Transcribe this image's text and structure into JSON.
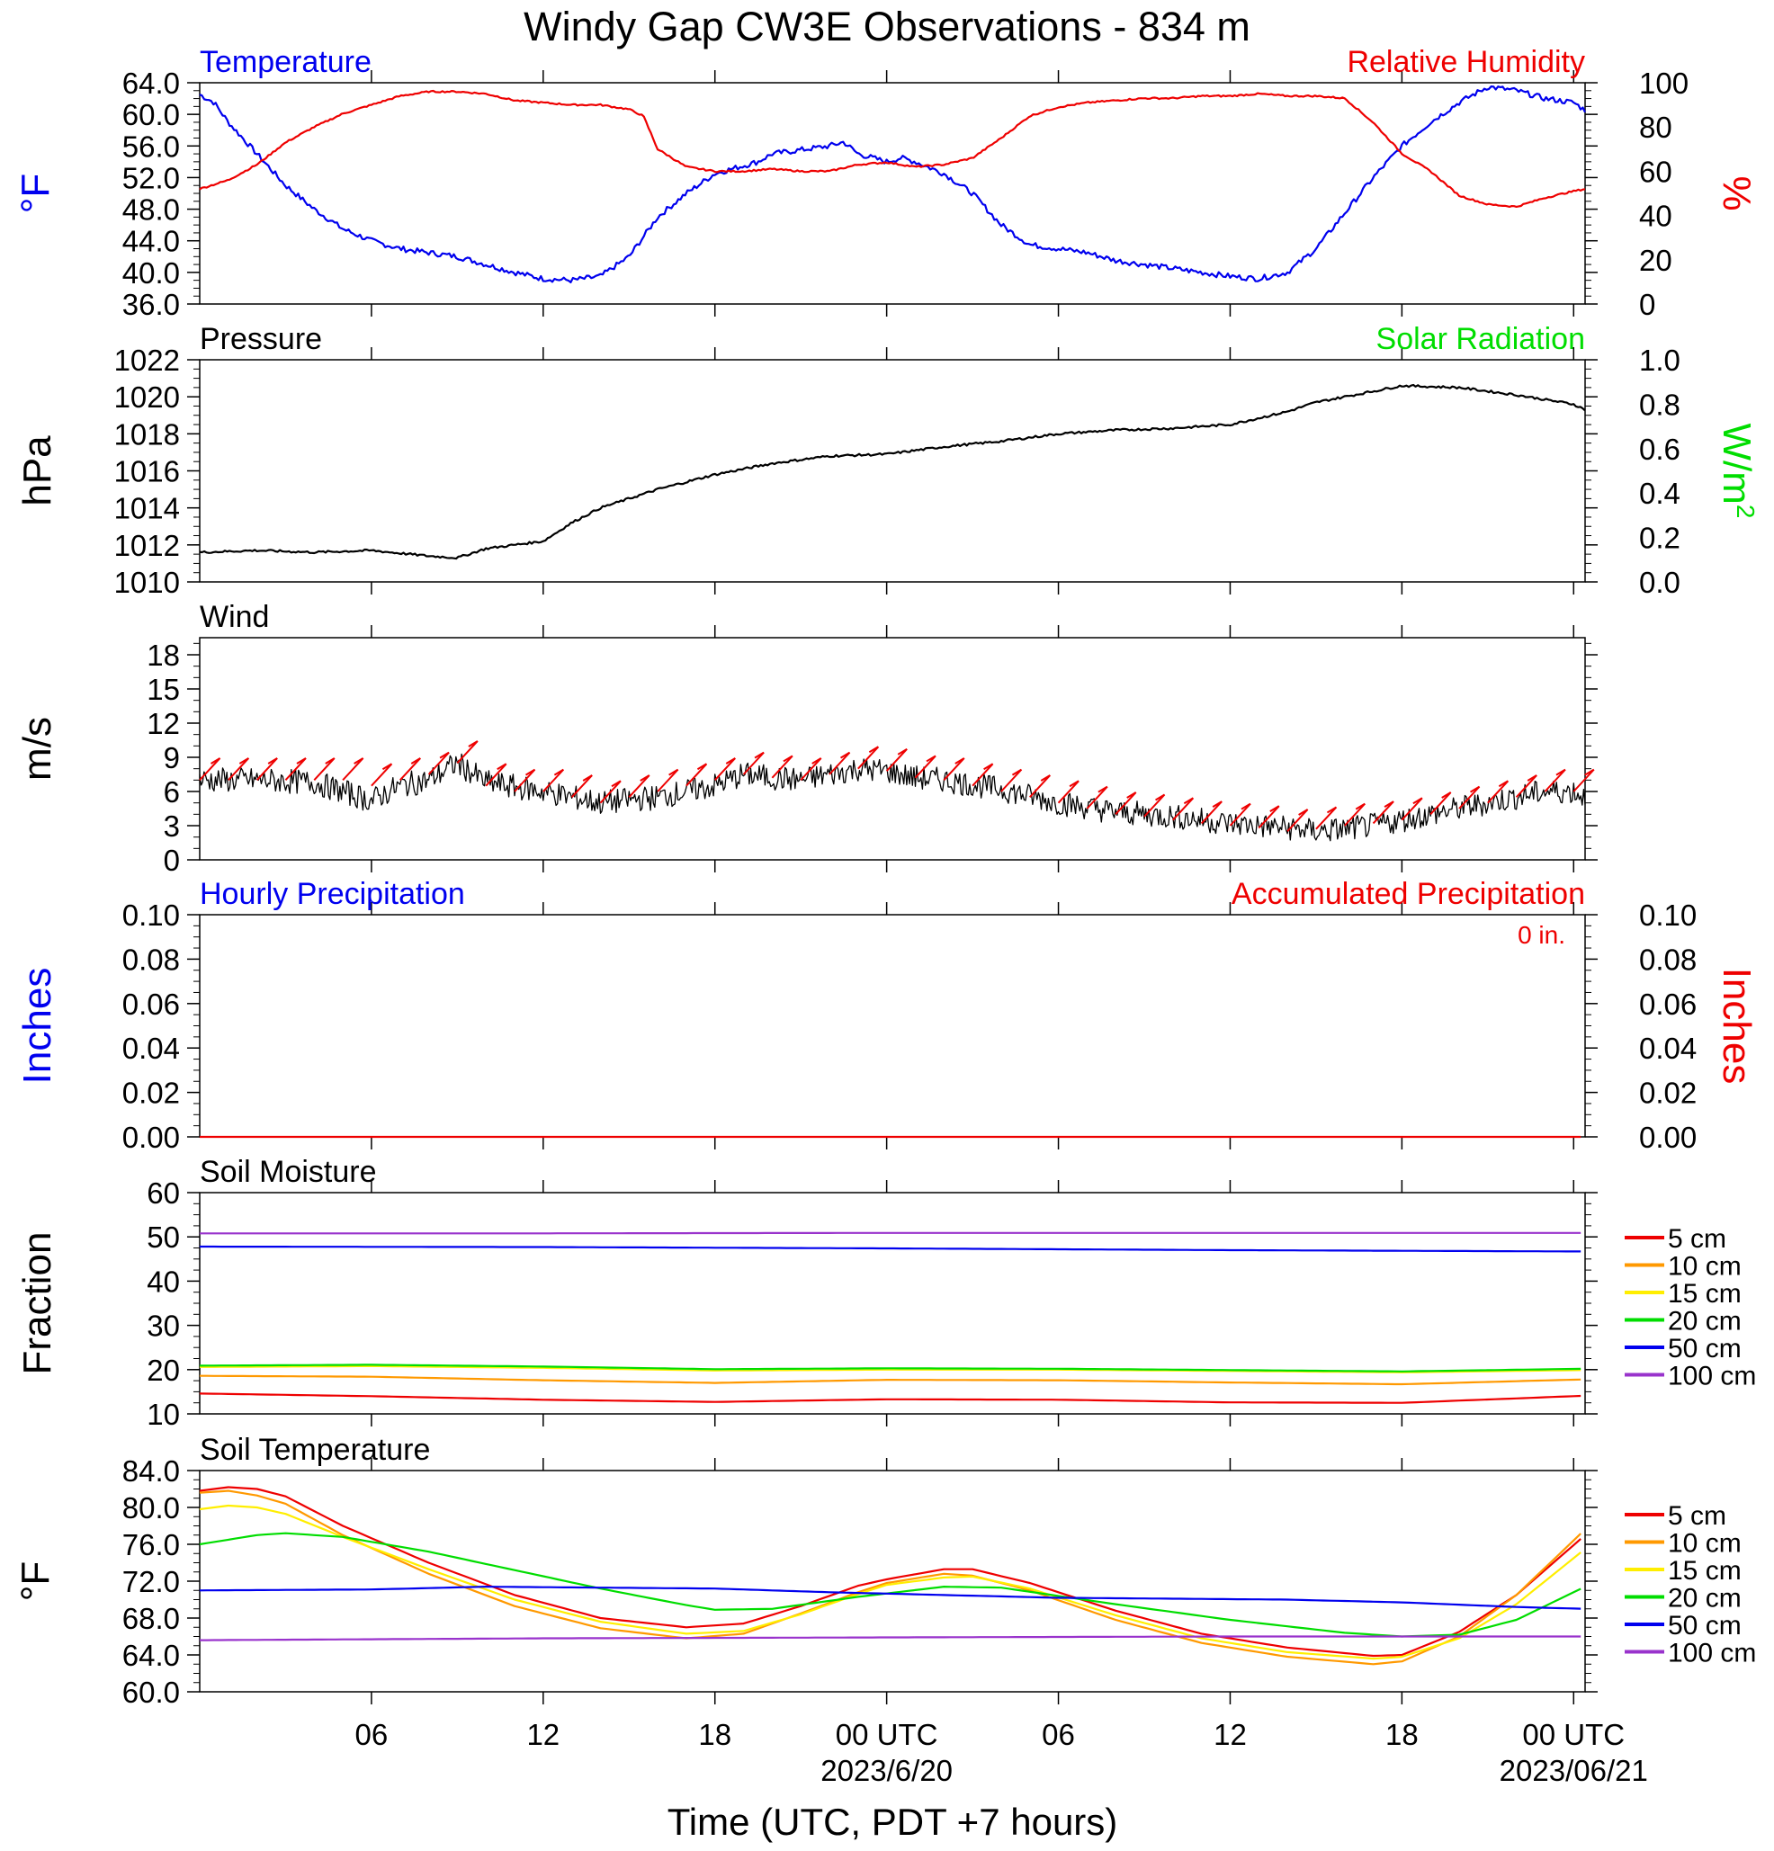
{
  "title": "Windy Gap CW3E Observations - 834 m",
  "x_axis": {
    "label": "Time (UTC, PDT +7 hours)",
    "ticks": [
      {
        "hour": 6,
        "label": "06"
      },
      {
        "hour": 12,
        "label": "12"
      },
      {
        "hour": 18,
        "label": "18"
      },
      {
        "hour": 24,
        "label": "00 UTC"
      },
      {
        "hour": 30,
        "label": "06"
      },
      {
        "hour": 36,
        "label": "12"
      },
      {
        "hour": 42,
        "label": "18"
      },
      {
        "hour": 48,
        "label": "00 UTC"
      }
    ],
    "dates": [
      {
        "hour": 24,
        "label": "2023/6/20"
      },
      {
        "hour": 48,
        "label": "2023/06/21"
      }
    ],
    "range_hours": [
      0,
      48.4
    ]
  },
  "legend": {
    "depths": [
      "5 cm",
      "10 cm",
      "15 cm",
      "20 cm",
      "50 cm",
      "100 cm"
    ],
    "colors": [
      "#ee0000",
      "#ff9900",
      "#ffee00",
      "#00dd00",
      "#0000ee",
      "#9933cc"
    ]
  },
  "chart_data": [
    {
      "id": "temperature-rh",
      "type": "line",
      "left_title": "Temperature",
      "right_title": "Relative Humidity",
      "ylabel_left": "°F",
      "ylabel_right": "%",
      "ylim_left": [
        36,
        64
      ],
      "ylim_right": [
        0,
        100
      ],
      "yticks_left": [
        "64.0",
        "60.0",
        "56.0",
        "52.0",
        "48.0",
        "44.0",
        "40.0",
        "36.0"
      ],
      "yticks_right": [
        "100",
        "80",
        "60",
        "40",
        "20",
        "0"
      ],
      "series": [
        {
          "name": "Temperature",
          "axis": "left",
          "color": "#0000ee",
          "x": [
            0,
            0.5,
            1,
            2,
            3,
            4,
            5,
            6,
            7,
            8,
            9,
            10,
            11,
            12,
            13,
            14,
            15,
            15.5,
            16,
            17,
            18,
            19,
            19.5,
            20,
            21,
            22,
            22.5,
            23,
            24,
            24.5,
            25,
            26,
            27,
            28,
            29,
            30,
            31,
            32,
            33,
            34,
            35,
            36,
            37,
            38,
            39,
            40,
            41,
            42,
            43,
            44,
            45,
            46,
            47,
            48,
            48.4
          ],
          "y": [
            62.5,
            61.5,
            59,
            55,
            51,
            48,
            45.5,
            44,
            43,
            42.5,
            42,
            41,
            40,
            39.2,
            39,
            39.5,
            42,
            44.5,
            47,
            50,
            52.5,
            53.5,
            54,
            55,
            55.5,
            56,
            56.5,
            55,
            54,
            54.5,
            54,
            52.5,
            50,
            46,
            43.5,
            43,
            42.5,
            41.5,
            41,
            40.5,
            40,
            39.5,
            39.2,
            40,
            43,
            47.5,
            52,
            56,
            59,
            61.5,
            63.5,
            63,
            62,
            61.5,
            60.5
          ]
        },
        {
          "name": "Relative Humidity",
          "axis": "right",
          "color": "#ee0000",
          "x": [
            0,
            1,
            2,
            3,
            4,
            5,
            6,
            7,
            8,
            9,
            10,
            11,
            12,
            13,
            14,
            15,
            15.5,
            16,
            17,
            18,
            19,
            20,
            21,
            22,
            23,
            24,
            25,
            26,
            27,
            28,
            29,
            30,
            31,
            32,
            33,
            34,
            35,
            36,
            37,
            38,
            39,
            40,
            41,
            42,
            43,
            44,
            45,
            46,
            47,
            48,
            48.4
          ],
          "y": [
            52,
            56,
            63,
            73,
            80,
            86,
            90,
            94,
            96,
            96,
            95,
            92,
            91,
            90,
            90,
            88,
            85,
            70,
            62,
            60,
            60,
            61,
            60,
            60,
            63,
            64,
            62,
            63,
            66,
            75,
            85,
            89,
            91,
            92,
            93,
            93,
            94,
            94,
            95,
            94,
            94,
            93,
            82,
            68,
            60,
            49,
            45,
            44,
            48,
            51,
            52
          ]
        }
      ]
    },
    {
      "id": "pressure-solar",
      "type": "line",
      "left_title": "Pressure",
      "right_title": "Solar Radiation",
      "ylabel_left": "hPa",
      "ylabel_right": "W/m",
      "ylabel_right_sup": "2",
      "ylim_left": [
        1010,
        1022
      ],
      "ylim_right": [
        0,
        1
      ],
      "yticks_left": [
        "1022",
        "1020",
        "1018",
        "1016",
        "1014",
        "1012",
        "1010"
      ],
      "yticks_right": [
        "1.0",
        "0.8",
        "0.6",
        "0.4",
        "0.2",
        "0.0"
      ],
      "series": [
        {
          "name": "Pressure",
          "axis": "left",
          "color": "#000000",
          "x": [
            0,
            2,
            4,
            6,
            8,
            9,
            10,
            12,
            13,
            14,
            16,
            18,
            20,
            22,
            24,
            26,
            28,
            30,
            32,
            34,
            36,
            38,
            39,
            40,
            42,
            44,
            46,
            48,
            48.4
          ],
          "y": [
            1011.6,
            1011.7,
            1011.6,
            1011.7,
            1011.4,
            1011.3,
            1011.8,
            1012.2,
            1013.2,
            1014,
            1015,
            1015.8,
            1016.4,
            1016.8,
            1016.9,
            1017.3,
            1017.6,
            1018,
            1018.2,
            1018.3,
            1018.5,
            1019.2,
            1019.7,
            1020.0,
            1020.6,
            1020.5,
            1020.1,
            1019.6,
            1019.3
          ]
        }
      ]
    },
    {
      "id": "wind",
      "type": "line",
      "left_title": "Wind",
      "ylabel_left": "m/s",
      "ylim_left": [
        0,
        19.5
      ],
      "yticks_left": [
        "18",
        "15",
        "12",
        "9",
        "6",
        "3",
        "0"
      ],
      "series": [
        {
          "name": "Wind Speed",
          "axis": "left",
          "color": "#000000",
          "x": [
            0,
            2,
            4,
            5,
            6,
            7,
            8,
            9,
            10,
            12,
            14,
            16,
            18,
            19,
            20,
            21,
            22,
            23,
            24,
            25,
            26,
            28,
            30,
            32,
            34,
            36,
            38,
            39,
            40,
            41,
            42,
            43,
            44,
            45,
            46,
            47,
            48,
            48.4
          ],
          "y": [
            7,
            7,
            6.8,
            6,
            5.2,
            6.5,
            7,
            8.5,
            6.8,
            6,
            5,
            5.5,
            6.5,
            7.5,
            7.2,
            7,
            7.5,
            8,
            7.8,
            7.2,
            7,
            6.2,
            5,
            4.2,
            3.8,
            3.2,
            2.8,
            2.5,
            2.7,
            3,
            3.5,
            4,
            4.5,
            5,
            5.5,
            6,
            6,
            5.5
          ]
        },
        {
          "name": "Wind Barbs",
          "axis": "left",
          "color": "#ee0000",
          "x": [
            0,
            1,
            2,
            3,
            4,
            5,
            6,
            7,
            8,
            9,
            10,
            11,
            12,
            13,
            14,
            15,
            16,
            17,
            18,
            19,
            20,
            21,
            22,
            23,
            24,
            25,
            26,
            27,
            28,
            29,
            30,
            31,
            32,
            33,
            34,
            35,
            36,
            37,
            38,
            39,
            40,
            41,
            42,
            43,
            44,
            45,
            46,
            47,
            48
          ],
          "y": [
            7,
            7,
            7,
            7,
            7,
            7,
            6.5,
            7,
            7.5,
            8.5,
            6.5,
            6,
            6,
            5.5,
            5,
            5.5,
            6,
            6.5,
            7,
            7.5,
            7.2,
            7,
            7.5,
            8,
            7.8,
            7.2,
            7,
            6.5,
            6,
            5.5,
            5,
            4.5,
            4,
            3.8,
            3.5,
            3.2,
            3,
            2.8,
            2.5,
            2.7,
            3,
            3.2,
            3.5,
            4,
            4.5,
            5,
            5.5,
            6,
            6
          ]
        }
      ]
    },
    {
      "id": "precipitation",
      "type": "line",
      "left_title": "Hourly Precipitation",
      "right_title": "Accumulated Precipitation",
      "annotation": "0 in.",
      "ylabel_left": "Inches",
      "ylabel_right": "Inches",
      "ylim_left": [
        0,
        0.1
      ],
      "ylim_right": [
        0,
        0.1
      ],
      "yticks_left": [
        "0.10",
        "0.08",
        "0.06",
        "0.04",
        "0.02",
        "0.00"
      ],
      "yticks_right": [
        "0.10",
        "0.08",
        "0.06",
        "0.04",
        "0.02",
        "0.00"
      ],
      "series": [
        {
          "name": "Accumulated Precipitation",
          "axis": "right",
          "color": "#ee0000",
          "x": [
            0,
            48.4
          ],
          "y": [
            0,
            0
          ]
        }
      ]
    },
    {
      "id": "soil-moisture",
      "type": "line",
      "left_title": "Soil Moisture",
      "ylabel_left": "Fraction",
      "ylim_left": [
        10,
        60
      ],
      "yticks_left": [
        "60",
        "50",
        "40",
        "30",
        "20",
        "10"
      ],
      "series": [
        {
          "name": "5 cm",
          "color": "#ee0000",
          "x": [
            0,
            6,
            12,
            18,
            24,
            30,
            36,
            42,
            48.4
          ],
          "y": [
            14.6,
            14.0,
            13.2,
            12.7,
            13.3,
            13.2,
            12.6,
            12.5,
            14.1
          ]
        },
        {
          "name": "10 cm",
          "color": "#ff9900",
          "x": [
            0,
            6,
            12,
            18,
            24,
            30,
            36,
            42,
            48.4
          ],
          "y": [
            18.6,
            18.4,
            17.6,
            17.0,
            17.7,
            17.6,
            17.1,
            16.7,
            17.8
          ]
        },
        {
          "name": "15 cm",
          "color": "#ffee00",
          "x": [
            0,
            6,
            12,
            18,
            24,
            30,
            36,
            42,
            48.4
          ],
          "y": [
            20.6,
            20.8,
            20.4,
            19.8,
            20.0,
            20.0,
            19.7,
            19.4,
            19.9
          ]
        },
        {
          "name": "20 cm",
          "color": "#00dd00",
          "x": [
            0,
            6,
            12,
            18,
            24,
            30,
            36,
            42,
            48.4
          ],
          "y": [
            20.9,
            21.1,
            20.7,
            20.1,
            20.3,
            20.2,
            19.9,
            19.6,
            20.2
          ]
        },
        {
          "name": "50 cm",
          "color": "#0000ee",
          "x": [
            0,
            12,
            24,
            36,
            48.4
          ],
          "y": [
            47.8,
            47.7,
            47.4,
            47.0,
            46.7
          ]
        },
        {
          "name": "100 cm",
          "color": "#9933cc",
          "x": [
            0,
            12,
            24,
            36,
            48.4
          ],
          "y": [
            50.8,
            50.8,
            50.9,
            50.9,
            50.9
          ]
        }
      ]
    },
    {
      "id": "soil-temperature",
      "type": "line",
      "left_title": "Soil Temperature",
      "ylabel_left": "°F",
      "ylim_left": [
        60,
        84
      ],
      "yticks_left": [
        "84.0",
        "80.0",
        "76.0",
        "72.0",
        "68.0",
        "64.0",
        "60.0"
      ],
      "series": [
        {
          "name": "5 cm",
          "color": "#ee0000",
          "x": [
            0,
            1,
            2,
            3,
            5,
            8,
            11,
            14,
            17,
            19,
            21,
            23,
            24,
            26,
            27,
            29,
            32,
            35,
            38,
            41,
            42,
            44,
            46,
            48.4
          ],
          "y": [
            81.8,
            82.2,
            82.0,
            81.2,
            78.0,
            74.0,
            70.5,
            68.0,
            67.0,
            67.4,
            69.3,
            71.5,
            72.2,
            73.3,
            73.3,
            71.8,
            68.8,
            66.3,
            64.8,
            63.9,
            64.0,
            66.5,
            70.5,
            77.0
          ]
        },
        {
          "name": "10 cm",
          "color": "#ff9900",
          "x": [
            0,
            1,
            2,
            3,
            5,
            8,
            11,
            14,
            17,
            19,
            21,
            23,
            24,
            26,
            27,
            29,
            32,
            35,
            38,
            41,
            42,
            44,
            46,
            48.4
          ],
          "y": [
            81.6,
            81.8,
            81.3,
            80.4,
            77.0,
            72.8,
            69.3,
            66.9,
            65.8,
            66.3,
            68.5,
            70.8,
            71.8,
            72.8,
            72.6,
            71.0,
            67.8,
            65.3,
            63.8,
            63.0,
            63.3,
            66.0,
            70.5,
            77.6
          ]
        },
        {
          "name": "15 cm",
          "color": "#ffee00",
          "x": [
            0,
            1,
            2,
            3,
            5,
            8,
            11,
            14,
            17,
            19,
            21,
            23,
            24,
            26,
            27,
            29,
            32,
            35,
            38,
            41,
            42,
            44,
            46,
            48.4
          ],
          "y": [
            79.8,
            80.2,
            80.0,
            79.3,
            76.8,
            73.3,
            70.0,
            67.6,
            66.3,
            66.6,
            68.4,
            70.6,
            71.6,
            72.4,
            72.5,
            71.2,
            68.3,
            65.8,
            64.3,
            63.6,
            63.8,
            65.8,
            69.5,
            75.5
          ]
        },
        {
          "name": "20 cm",
          "color": "#00dd00",
          "x": [
            0,
            2,
            3,
            5,
            8,
            11,
            14,
            17,
            18,
            20,
            23,
            26,
            28,
            32,
            36,
            40,
            42,
            44,
            46,
            48.4
          ],
          "y": [
            76.0,
            77.0,
            77.2,
            76.8,
            75.2,
            73.2,
            71.2,
            69.4,
            68.9,
            69.0,
            70.3,
            71.4,
            71.3,
            69.5,
            67.8,
            66.4,
            66.0,
            66.2,
            67.8,
            71.4
          ]
        },
        {
          "name": "50 cm",
          "color": "#0000ee",
          "x": [
            0,
            6,
            10,
            14,
            18,
            22,
            26,
            30,
            34,
            38,
            42,
            46,
            48.4
          ],
          "y": [
            71.0,
            71.1,
            71.4,
            71.3,
            71.2,
            70.8,
            70.5,
            70.2,
            70.1,
            70.0,
            69.7,
            69.2,
            69.0
          ]
        },
        {
          "name": "100 cm",
          "color": "#9933cc",
          "x": [
            0,
            12,
            24,
            36,
            48.4
          ],
          "y": [
            65.6,
            65.8,
            65.9,
            66.0,
            66.0
          ]
        }
      ]
    }
  ]
}
